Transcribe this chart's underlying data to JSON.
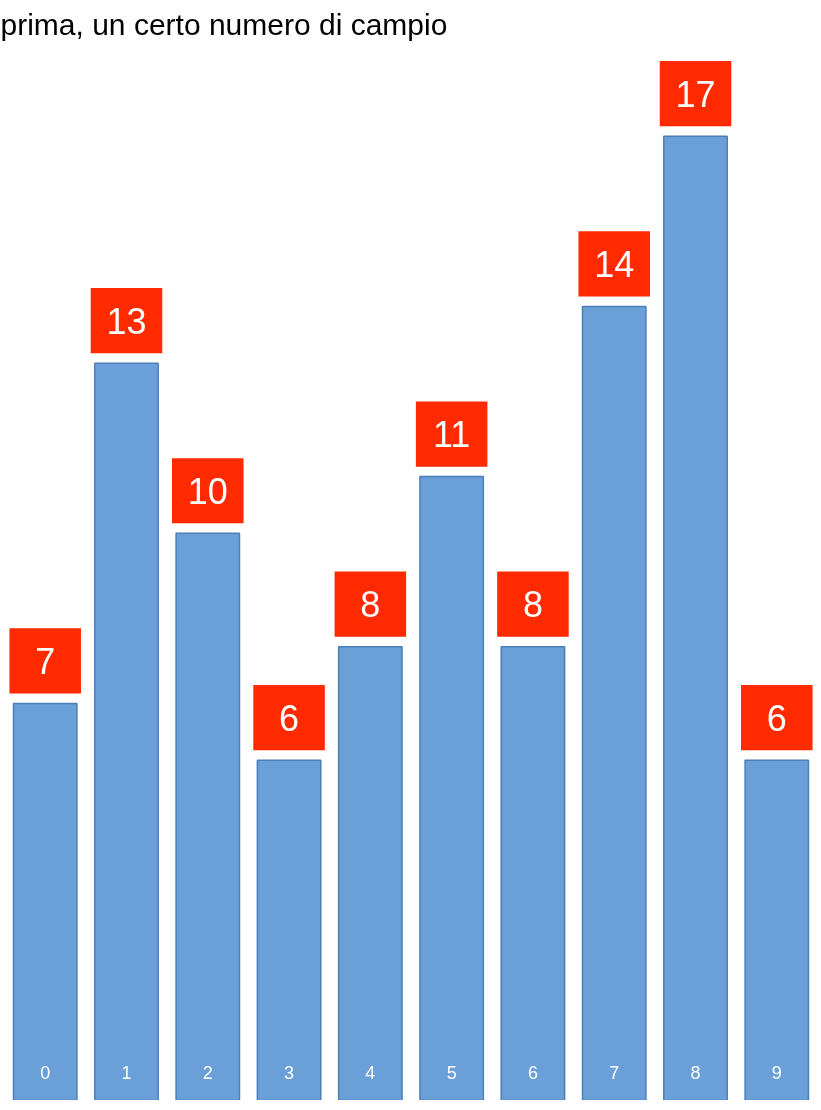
{
  "chart_data": {
    "type": "bar",
    "title": "prima, un certo numero di campio",
    "categories": [
      "0",
      "1",
      "2",
      "3",
      "4",
      "5",
      "6",
      "7",
      "8",
      "9"
    ],
    "values": [
      7,
      13,
      10,
      6,
      8,
      11,
      8,
      14,
      17,
      6
    ],
    "color": "#6a9fd8",
    "data_labels": true,
    "tick_labels": false,
    "grid": false
  }
}
